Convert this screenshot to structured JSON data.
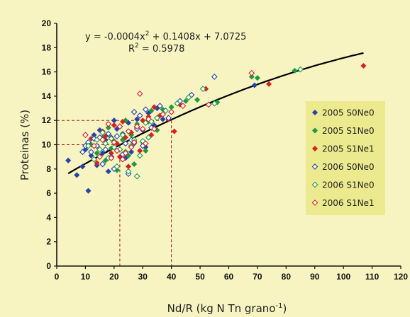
{
  "chart_data": {
    "type": "scatter",
    "xlabel": "Nd/R (kg N Tn grano",
    "xlabel_sup": "-1",
    "xlabel_end": ")",
    "ylabel": "Proteinas (%)",
    "xlim": [
      0,
      120
    ],
    "ylim": [
      0,
      20
    ],
    "xticks": [
      "0",
      "10",
      "20",
      "30",
      "40",
      "50",
      "60",
      "70",
      "80",
      "90",
      "100",
      "110",
      "120"
    ],
    "yticks": [
      "0",
      "2",
      "4",
      "6",
      "8",
      "10",
      "12",
      "14",
      "16",
      "18",
      "20"
    ],
    "grid": false,
    "legend_position": "right",
    "equation": {
      "line1_a": "y = -0.0004x",
      "line1_sup": "2",
      "line1_b": " + 0.1408x + 7.0725",
      "line2_a": "R",
      "line2_sup": "2",
      "line2_b": " = 0.5978"
    },
    "trend": {
      "a": -0.0004,
      "b": 0.1408,
      "c": 7.0725,
      "x_from": 4,
      "x_to": 107,
      "color": "#000000"
    },
    "reference_lines": [
      {
        "x": 22,
        "y": 10,
        "color": "#9b1c1c"
      },
      {
        "x": 40,
        "y": 12,
        "color": "#9b1c1c"
      }
    ],
    "series": [
      {
        "name": "2005 S0Ne0",
        "color": "#2742a8",
        "filled": true,
        "points": [
          [
            4,
            8.7
          ],
          [
            7,
            7.5
          ],
          [
            9,
            8.2
          ],
          [
            10,
            9.6
          ],
          [
            11,
            6.2
          ],
          [
            12,
            9.1
          ],
          [
            13,
            10.8
          ],
          [
            14,
            8.3
          ],
          [
            15,
            11.2
          ],
          [
            16,
            9.3
          ],
          [
            17,
            10.4
          ],
          [
            18,
            7.8
          ],
          [
            19,
            10.6
          ],
          [
            20,
            12
          ],
          [
            21,
            11.3
          ],
          [
            22,
            9.6
          ],
          [
            23,
            10.9
          ],
          [
            24,
            8.9
          ],
          [
            25,
            11.8
          ],
          [
            26,
            9.4
          ],
          [
            27,
            10.1
          ],
          [
            28,
            12.1
          ],
          [
            30,
            11.2
          ],
          [
            31,
            9.8
          ],
          [
            32,
            12.6
          ],
          [
            34,
            11.6
          ],
          [
            35,
            13
          ],
          [
            37,
            12.1
          ],
          [
            69,
            14.9
          ]
        ]
      },
      {
        "name": "2005 S1Ne0",
        "color": "#1e9a3c",
        "filled": true,
        "points": [
          [
            12,
            10
          ],
          [
            14,
            9.3
          ],
          [
            16,
            10.6
          ],
          [
            17,
            8.7
          ],
          [
            18,
            11.4
          ],
          [
            19,
            9.7
          ],
          [
            20,
            10.3
          ],
          [
            21,
            7.9
          ],
          [
            22,
            11.5
          ],
          [
            23,
            10.4
          ],
          [
            24,
            12
          ],
          [
            25,
            9.1
          ],
          [
            26,
            10.8
          ],
          [
            27,
            8.4
          ],
          [
            28,
            11.7
          ],
          [
            29,
            12.4
          ],
          [
            30,
            10.2
          ],
          [
            31,
            9.5
          ],
          [
            32,
            11.9
          ],
          [
            33,
            12.8
          ],
          [
            35,
            11.2
          ],
          [
            37,
            12.9
          ],
          [
            40,
            13.1
          ],
          [
            45,
            13.6
          ],
          [
            49,
            13.7
          ],
          [
            56,
            13.5
          ],
          [
            68,
            15.6
          ],
          [
            70,
            15.5
          ],
          [
            83,
            16.1
          ]
        ]
      },
      {
        "name": "2005 S1Ne1",
        "color": "#d82020",
        "filled": true,
        "points": [
          [
            12,
            10.5
          ],
          [
            14,
            8.5
          ],
          [
            16,
            11.1
          ],
          [
            17,
            10.7
          ],
          [
            19,
            9.3
          ],
          [
            20,
            11.6
          ],
          [
            21,
            10.1
          ],
          [
            22,
            9
          ],
          [
            23,
            11.9
          ],
          [
            24,
            10.6
          ],
          [
            25,
            8.2
          ],
          [
            26,
            11
          ],
          [
            27,
            10.3
          ],
          [
            28,
            11.4
          ],
          [
            29,
            9.5
          ],
          [
            30,
            12
          ],
          [
            32,
            12.3
          ],
          [
            33,
            10.8
          ],
          [
            34,
            13.1
          ],
          [
            36,
            12.4
          ],
          [
            39,
            12.1
          ],
          [
            41,
            11.1
          ],
          [
            43,
            13.3
          ],
          [
            52,
            14.6
          ],
          [
            74,
            15
          ],
          [
            107,
            16.5
          ]
        ]
      },
      {
        "name": "2006 S0Ne0",
        "color": "#2742a8",
        "filled": false,
        "points": [
          [
            9,
            9.4
          ],
          [
            10,
            9.9
          ],
          [
            11,
            10.2
          ],
          [
            12,
            9.4
          ],
          [
            13,
            10.5
          ],
          [
            14,
            9.9
          ],
          [
            15,
            10.6
          ],
          [
            16,
            8.4
          ],
          [
            17,
            9.6
          ],
          [
            18,
            10.9
          ],
          [
            19,
            9
          ],
          [
            20,
            8
          ],
          [
            21,
            10.7
          ],
          [
            22,
            11.5
          ],
          [
            23,
            9.2
          ],
          [
            24,
            10.1
          ],
          [
            25,
            7.6
          ],
          [
            26,
            10.4
          ],
          [
            27,
            12.7
          ],
          [
            28,
            11.3
          ],
          [
            29,
            12.4
          ],
          [
            30,
            9.9
          ],
          [
            31,
            12.9
          ],
          [
            33,
            11.4
          ],
          [
            36,
            13.2
          ],
          [
            39,
            12.2
          ],
          [
            43,
            13.6
          ],
          [
            47,
            14.1
          ],
          [
            55,
            15.6
          ]
        ]
      },
      {
        "name": "2006 S1Ne0",
        "color": "#1e9a3c",
        "filled": false,
        "points": [
          [
            11,
            9.9
          ],
          [
            13,
            8.8
          ],
          [
            14,
            10.4
          ],
          [
            15,
            9.6
          ],
          [
            16,
            11
          ],
          [
            17,
            10.1
          ],
          [
            18,
            8.9
          ],
          [
            19,
            10.5
          ],
          [
            20,
            9.8
          ],
          [
            21,
            8.2
          ],
          [
            22,
            9.6
          ],
          [
            23,
            10.8
          ],
          [
            24,
            9.4
          ],
          [
            25,
            7.8
          ],
          [
            26,
            9.9
          ],
          [
            27,
            10.4
          ],
          [
            28,
            7.4
          ],
          [
            29,
            9.1
          ],
          [
            30,
            10.3
          ],
          [
            31,
            11.8
          ],
          [
            32,
            10.6
          ],
          [
            33,
            11.9
          ],
          [
            35,
            12.2
          ],
          [
            38,
            12.8
          ],
          [
            42,
            13.4
          ],
          [
            46,
            13.9
          ],
          [
            51,
            14.6
          ],
          [
            55,
            13.4
          ],
          [
            85,
            16.2
          ]
        ]
      },
      {
        "name": "2006 S1Ne1",
        "color": "#d82020",
        "filled": false,
        "points": [
          [
            10,
            10.8
          ],
          [
            13,
            9.9
          ],
          [
            15,
            9
          ],
          [
            16,
            10.4
          ],
          [
            18,
            11.7
          ],
          [
            19,
            8.9
          ],
          [
            20,
            10.2
          ],
          [
            21,
            9.5
          ],
          [
            22,
            11.5
          ],
          [
            23,
            8.8
          ],
          [
            24,
            9.3
          ],
          [
            25,
            11.1
          ],
          [
            26,
            9.8
          ],
          [
            27,
            10.2
          ],
          [
            28,
            11.5
          ],
          [
            29,
            14.2
          ],
          [
            30,
            11.3
          ],
          [
            31,
            10.1
          ],
          [
            32,
            12.1
          ],
          [
            34,
            11.3
          ],
          [
            37,
            12.5
          ],
          [
            40,
            12.7
          ],
          [
            44,
            13.2
          ],
          [
            53,
            13.3
          ],
          [
            68,
            15.9
          ]
        ]
      }
    ]
  }
}
